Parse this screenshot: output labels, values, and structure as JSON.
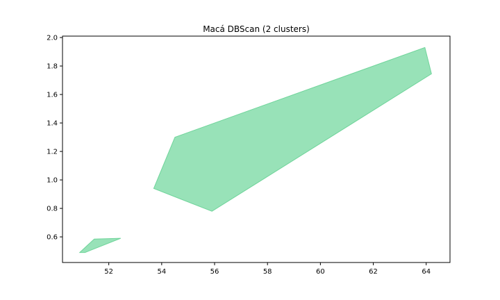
{
  "chart_data": {
    "type": "area",
    "title": "Macá DBScan (2 clusters)",
    "xlabel": "",
    "ylabel": "",
    "xlim": [
      50.25,
      64.9
    ],
    "ylim": [
      0.42,
      2.01
    ],
    "xticks": [
      52,
      54,
      56,
      58,
      60,
      62,
      64
    ],
    "yticks": [
      0.6,
      0.8,
      1.0,
      1.2,
      1.4,
      1.6,
      1.8,
      2.0
    ],
    "xtick_labels": [
      "52",
      "54",
      "56",
      "58",
      "60",
      "62",
      "64"
    ],
    "ytick_labels": [
      "0.6",
      "0.8",
      "1.0",
      "1.2",
      "1.4",
      "1.6",
      "1.8",
      "2.0"
    ],
    "grid": false,
    "fill_color": "#98e2b8",
    "edge_color": "#6fd49a",
    "series": [
      {
        "points": [
          [
            50.9,
            0.49
          ],
          [
            51.45,
            0.585
          ],
          [
            52.45,
            0.59
          ],
          [
            51.1,
            0.49
          ]
        ]
      },
      {
        "points": [
          [
            53.7,
            0.94
          ],
          [
            54.5,
            1.3
          ],
          [
            63.95,
            1.93
          ],
          [
            64.2,
            1.745
          ],
          [
            55.9,
            0.78
          ]
        ]
      }
    ]
  }
}
